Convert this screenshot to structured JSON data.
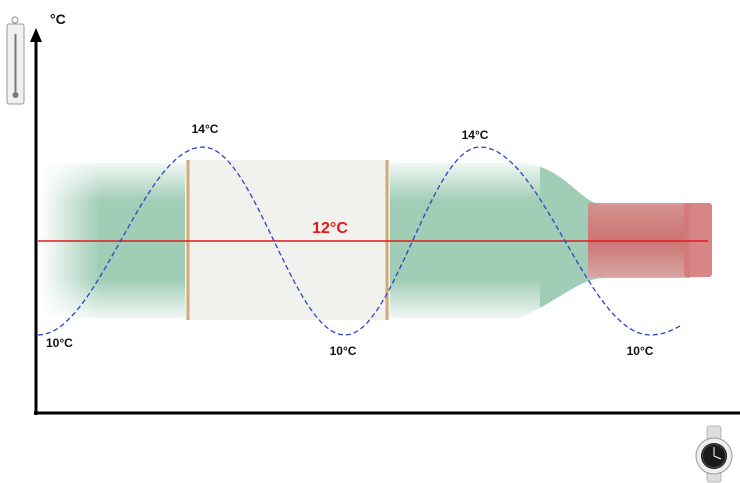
{
  "diagram": {
    "y_axis_unit": "°C",
    "reference_line": {
      "label": "12°C",
      "color": "#e31a1c"
    },
    "curve_color": "#2b44c9",
    "icons": {
      "top_left": "thermometer-icon",
      "bottom_right": "watch-icon"
    },
    "background": "wine-bottle"
  },
  "chart_data": {
    "type": "line",
    "series": [
      {
        "values": [
          10,
          14,
          10,
          14,
          10
        ]
      }
    ],
    "point_labels": [
      "10°C",
      "14°C",
      "10°C",
      "14°C",
      "10°C"
    ],
    "reference_value": 12,
    "reference_label": "12°C",
    "ylabel": "°C",
    "xlabel": ""
  }
}
